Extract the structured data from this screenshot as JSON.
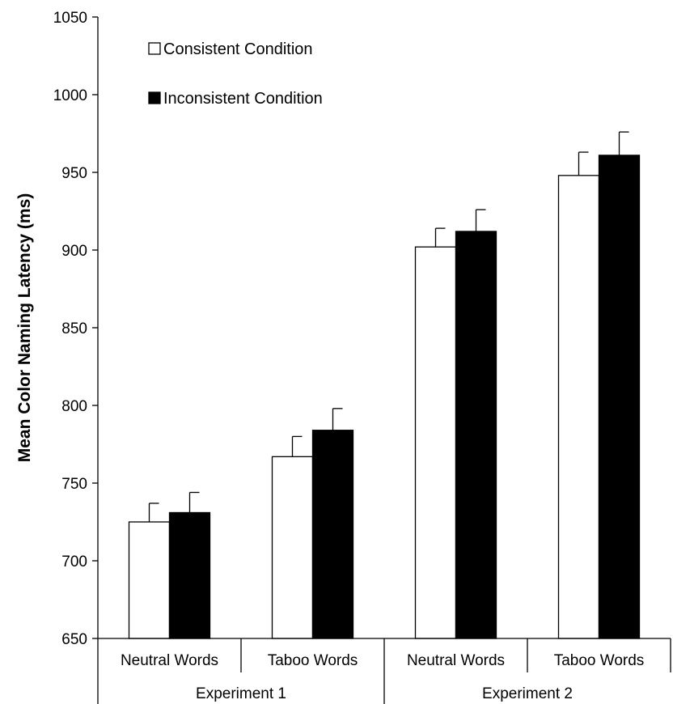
{
  "chart_data": {
    "type": "bar",
    "title": "",
    "xlabel": "",
    "ylabel": "Mean Color Naming Latency (ms)",
    "ylim": [
      650,
      1050
    ],
    "yticks": [
      650,
      700,
      750,
      800,
      850,
      900,
      950,
      1000,
      1050
    ],
    "grid": false,
    "legend_position": "top-left",
    "categories": [
      "Neutral Words",
      "Taboo Words",
      "Neutral Words",
      "Taboo Words"
    ],
    "groups": [
      {
        "label": "Experiment 1",
        "span": [
          0,
          1
        ]
      },
      {
        "label": "Experiment 2",
        "span": [
          2,
          3
        ]
      }
    ],
    "series": [
      {
        "name": "Consistent Condition",
        "color": "#ffffff",
        "values": [
          725,
          767,
          902,
          948
        ],
        "errors": [
          12,
          13,
          12,
          15
        ]
      },
      {
        "name": "Inconsistent Condition",
        "color": "#000000",
        "values": [
          731,
          784,
          912,
          961
        ],
        "errors": [
          13,
          14,
          14,
          15
        ]
      }
    ]
  }
}
